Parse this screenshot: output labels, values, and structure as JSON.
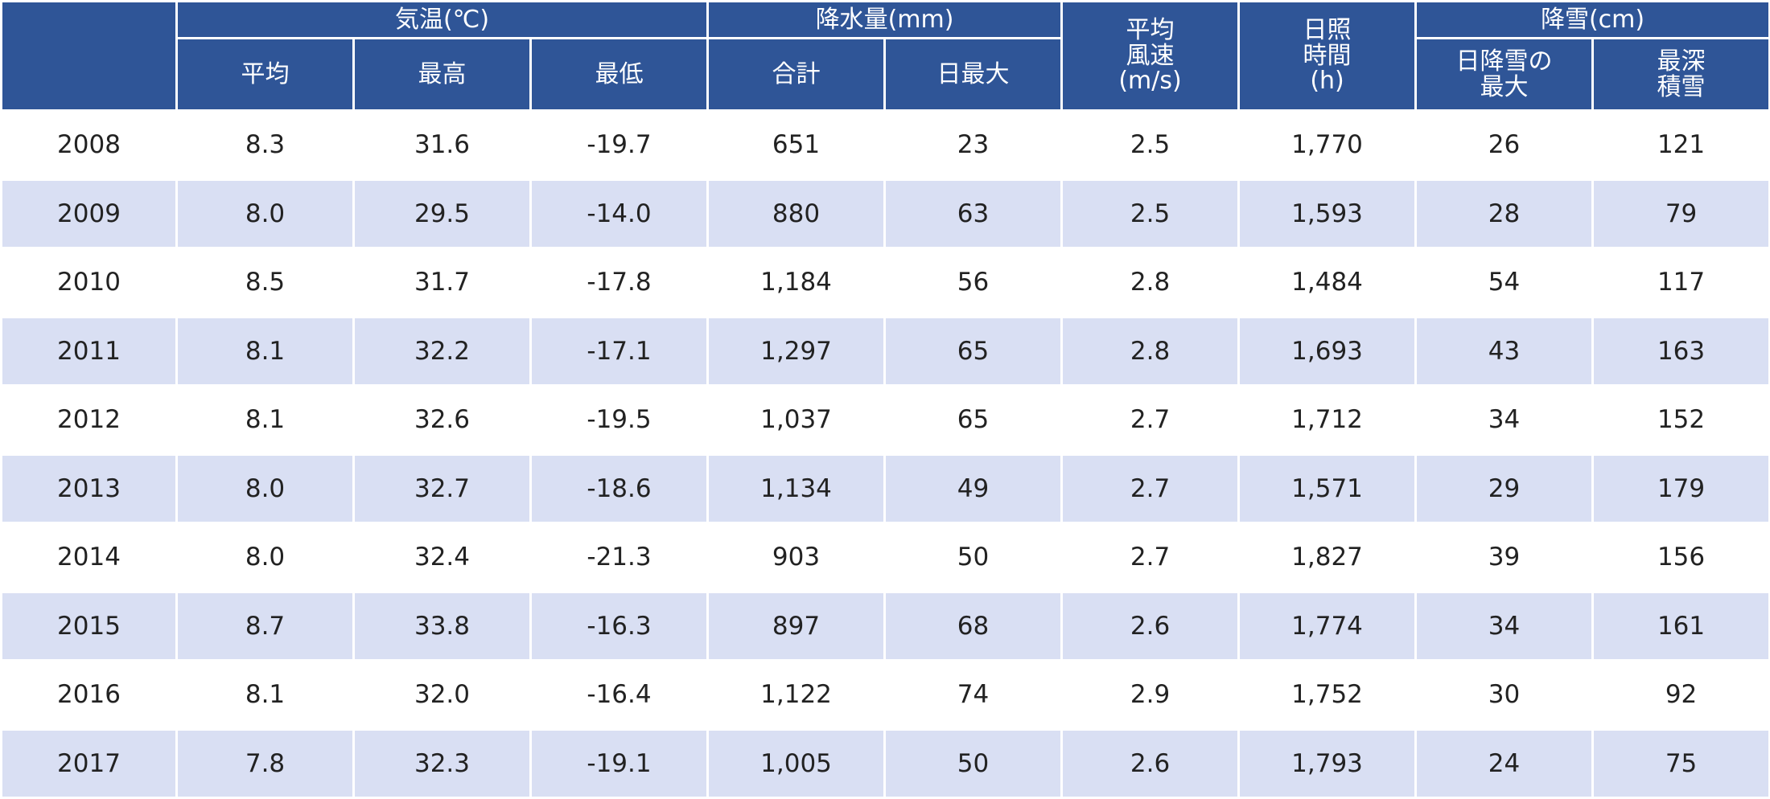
{
  "header": {
    "groups": [
      "気温(℃)",
      "降水量(mm)",
      "降雪(cm)"
    ],
    "columns": [
      [
        "平均"
      ],
      [
        "最高"
      ],
      [
        "最低"
      ],
      [
        "合計"
      ],
      [
        "日最大"
      ],
      [
        "平均",
        "風速",
        "(m/s)"
      ],
      [
        "日照",
        "時間",
        "(h)"
      ],
      [
        "日降雪の",
        "最大"
      ],
      [
        "最深",
        "積雪"
      ]
    ]
  },
  "table": {
    "rows": [
      [
        "2008",
        "8.3",
        "31.6",
        "-19.7",
        "651",
        "23",
        "2.5",
        "1,770",
        "26",
        "121"
      ],
      [
        "2009",
        "8.0",
        "29.5",
        "-14.0",
        "880",
        "63",
        "2.5",
        "1,593",
        "28",
        "79"
      ],
      [
        "2010",
        "8.5",
        "31.7",
        "-17.8",
        "1,184",
        "56",
        "2.8",
        "1,484",
        "54",
        "117"
      ],
      [
        "2011",
        "8.1",
        "32.2",
        "-17.1",
        "1,297",
        "65",
        "2.8",
        "1,693",
        "43",
        "163"
      ],
      [
        "2012",
        "8.1",
        "32.6",
        "-19.5",
        "1,037",
        "65",
        "2.7",
        "1,712",
        "34",
        "152"
      ],
      [
        "2013",
        "8.0",
        "32.7",
        "-18.6",
        "1,134",
        "49",
        "2.7",
        "1,571",
        "29",
        "179"
      ],
      [
        "2014",
        "8.0",
        "32.4",
        "-21.3",
        "903",
        "50",
        "2.7",
        "1,827",
        "39",
        "156"
      ],
      [
        "2015",
        "8.7",
        "33.8",
        "-16.3",
        "897",
        "68",
        "2.6",
        "1,774",
        "34",
        "161"
      ],
      [
        "2016",
        "8.1",
        "32.0",
        "-16.4",
        "1,122",
        "74",
        "2.9",
        "1,752",
        "30",
        "92"
      ],
      [
        "2017",
        "7.8",
        "32.3",
        "-19.1",
        "1,005",
        "50",
        "2.6",
        "1,793",
        "24",
        "75"
      ]
    ]
  }
}
